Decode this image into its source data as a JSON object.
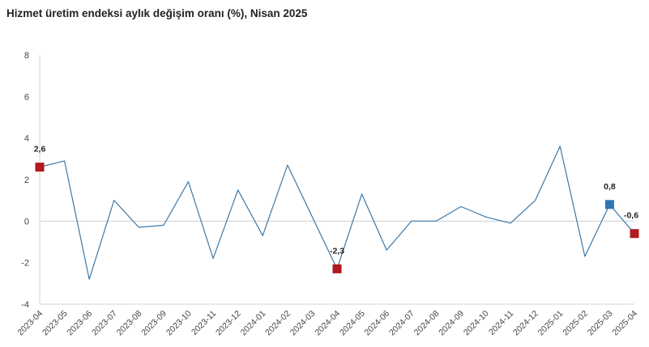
{
  "chart_data": {
    "type": "line",
    "title": "Hizmet üretim endeksi aylık değişim oranı (%), Nisan 2025",
    "xlabel": "",
    "ylabel": "",
    "ylim": [
      -4,
      8
    ],
    "yticks": [
      8,
      6,
      4,
      2,
      0,
      -2,
      -4
    ],
    "grid": false,
    "legend": "none",
    "x": [
      "2023-04",
      "2023-05",
      "2023-06",
      "2023-07",
      "2023-08",
      "2023-09",
      "2023-10",
      "2023-11",
      "2023-12",
      "2024-01",
      "2024-02",
      "2024-03",
      "2024-04",
      "2024-05",
      "2024-06",
      "2024-07",
      "2024-08",
      "2024-09",
      "2024-10",
      "2024-11",
      "2024-12",
      "2025-01",
      "2025-02",
      "2025-03",
      "2025-04"
    ],
    "series": [
      {
        "values": [
          2.6,
          2.9,
          -2.8,
          1.0,
          -0.3,
          -0.2,
          1.9,
          -1.8,
          1.5,
          -0.7,
          2.7,
          0.2,
          -2.3,
          1.3,
          -1.4,
          0.0,
          0.0,
          0.7,
          0.2,
          -0.1,
          1.0,
          3.6,
          -1.7,
          0.8,
          -0.6
        ],
        "color": "#3b78a8"
      }
    ],
    "highlights": [
      {
        "x": "2023-04",
        "value": 2.6,
        "label": "2,6",
        "color": "#b0191e"
      },
      {
        "x": "2024-04",
        "value": -2.3,
        "label": "-2,3",
        "color": "#b0191e"
      },
      {
        "x": "2025-03",
        "value": 0.8,
        "label": "0,8",
        "color": "#2e75b6"
      },
      {
        "x": "2025-04",
        "value": -0.6,
        "label": "-0,6",
        "color": "#b0191e"
      }
    ],
    "zero_line_color": "#d0d0d0",
    "axis_color": "#d0d0d0"
  }
}
